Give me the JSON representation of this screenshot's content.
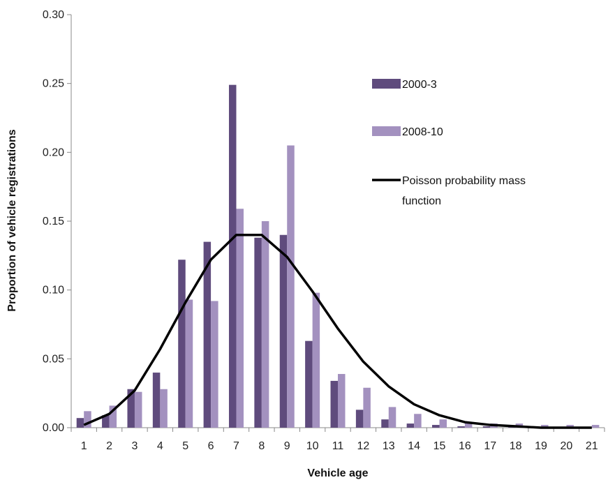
{
  "chart_data": {
    "type": "bar",
    "xlabel": "Vehicle age",
    "ylabel": "Proportion of vehicle registrations",
    "ylim": [
      0,
      0.3
    ],
    "yticks": [
      "0.00",
      "0.05",
      "0.10",
      "0.15",
      "0.20",
      "0.25",
      "0.30"
    ],
    "categories": [
      "1",
      "2",
      "3",
      "4",
      "5",
      "6",
      "7",
      "8",
      "9",
      "10",
      "11",
      "12",
      "13",
      "14",
      "15",
      "16",
      "17",
      "18",
      "19",
      "20",
      "21"
    ],
    "series": [
      {
        "name": "2000-3",
        "kind": "bar",
        "color": "#5f4b7d",
        "values": [
          0.007,
          0.009,
          0.028,
          0.04,
          0.122,
          0.135,
          0.249,
          0.138,
          0.14,
          0.063,
          0.034,
          0.013,
          0.006,
          0.003,
          0.002,
          0.001,
          0.001,
          0.001,
          0.0,
          0.0,
          0.0
        ]
      },
      {
        "name": "2008-10",
        "kind": "bar",
        "color": "#a391bf",
        "values": [
          0.012,
          0.016,
          0.026,
          0.028,
          0.093,
          0.092,
          0.159,
          0.15,
          0.205,
          0.098,
          0.039,
          0.029,
          0.015,
          0.01,
          0.006,
          0.004,
          0.003,
          0.003,
          0.002,
          0.002,
          0.002
        ]
      },
      {
        "name": "Poisson probability mass function",
        "kind": "line",
        "color": "#000000",
        "values": [
          0.002,
          0.01,
          0.027,
          0.057,
          0.091,
          0.122,
          0.14,
          0.14,
          0.124,
          0.099,
          0.072,
          0.048,
          0.03,
          0.017,
          0.009,
          0.004,
          0.002,
          0.001,
          0.0,
          0.0,
          0.0
        ]
      }
    ],
    "legend": {
      "position": "right",
      "items": [
        {
          "label": "2000-3",
          "marker": "bar",
          "color": "#5f4b7d"
        },
        {
          "label": "2008-10",
          "marker": "bar",
          "color": "#a391bf"
        },
        {
          "label_lines": [
            "Poisson probability mass",
            "function"
          ],
          "marker": "line",
          "color": "#000000"
        }
      ]
    },
    "grid": false
  }
}
